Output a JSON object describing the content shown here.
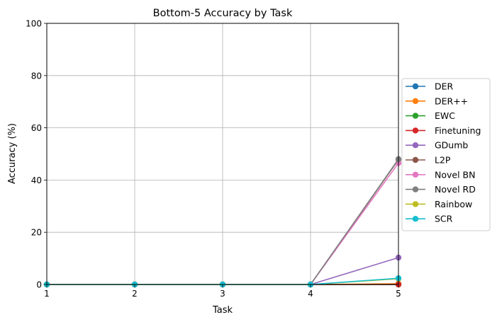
{
  "chart_data": {
    "type": "line",
    "title": "Bottom-5 Accuracy by Task",
    "xlabel": "Task",
    "ylabel": "Accuracy (%)",
    "x": [
      1,
      2,
      3,
      4,
      5
    ],
    "xticks": [
      "1",
      "2",
      "3",
      "4",
      "5"
    ],
    "yticks": [
      "0",
      "20",
      "40",
      "60",
      "80",
      "100"
    ],
    "xlim": [
      1,
      5
    ],
    "ylim": [
      0,
      100
    ],
    "grid": true,
    "legend_position": "right",
    "series": [
      {
        "name": "DER",
        "color": "#1f77b4",
        "values": [
          0,
          0,
          0,
          0,
          0
        ]
      },
      {
        "name": "DER++",
        "color": "#ff7f0e",
        "values": [
          0,
          0,
          0,
          0,
          0.3
        ]
      },
      {
        "name": "EWC",
        "color": "#2ca02c",
        "values": [
          0,
          0,
          0,
          0,
          0
        ]
      },
      {
        "name": "Finetuning",
        "color": "#d62728",
        "values": [
          0,
          0,
          0,
          0,
          0
        ]
      },
      {
        "name": "GDumb",
        "color": "#9467bd",
        "values": [
          0,
          0,
          0,
          0,
          10.3
        ]
      },
      {
        "name": "L2P",
        "color": "#8c564b",
        "values": [
          0,
          0,
          0,
          0,
          47.8
        ]
      },
      {
        "name": "Novel BN",
        "color": "#e377c2",
        "values": [
          0,
          0,
          0,
          0,
          46.5
        ]
      },
      {
        "name": "Novel RD",
        "color": "#7f7f7f",
        "values": [
          0,
          0,
          0,
          0,
          48.0
        ]
      },
      {
        "name": "Rainbow",
        "color": "#bcbd22",
        "values": [
          0,
          0,
          0,
          0,
          2.2
        ]
      },
      {
        "name": "SCR",
        "color": "#17becf",
        "values": [
          0,
          0,
          0,
          0,
          2.4
        ]
      }
    ]
  }
}
